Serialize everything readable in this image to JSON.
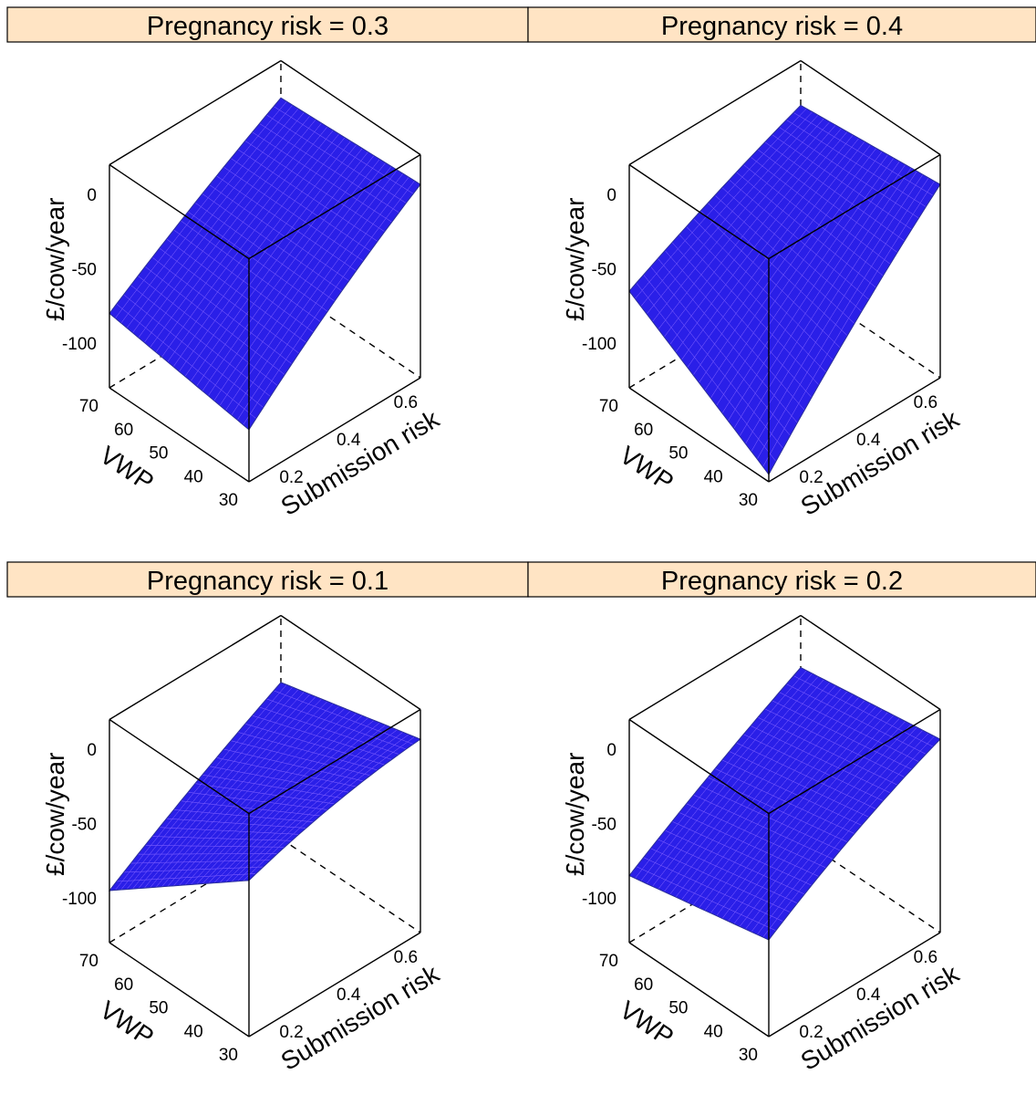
{
  "figure": {
    "strip_fill": "#ffe4c4",
    "surface_fill": "#2a1fe8",
    "surface_mesh": "#7b5cff",
    "surface_edge": "#2a2e9a"
  },
  "chart_data": [
    {
      "type": "surface3d",
      "panel": "Pregnancy risk = 0.3",
      "xlabel": "Submission risk",
      "ylabel": "VWP",
      "zlabel": "£/cow/year",
      "x_ticks": [
        "0.2",
        "0.4",
        "0.6"
      ],
      "y_ticks": [
        "30",
        "40",
        "50",
        "60",
        "70"
      ],
      "z_ticks": [
        "0",
        "-50",
        "-100"
      ],
      "xlim": [
        0.1,
        0.7
      ],
      "ylim": [
        30,
        70
      ],
      "zlim": [
        -130,
        20
      ],
      "corners": {
        "xmin_ymin": -95,
        "xmax_ymin": 0,
        "xmin_ymax": -80,
        "xmax_ymax": -5
      }
    },
    {
      "type": "surface3d",
      "panel": "Pregnancy risk = 0.4",
      "xlabel": "Submission risk",
      "ylabel": "VWP",
      "zlabel": "£/cow/year",
      "x_ticks": [
        "0.2",
        "0.4",
        "0.6"
      ],
      "y_ticks": [
        "30",
        "40",
        "50",
        "60",
        "70"
      ],
      "z_ticks": [
        "0",
        "-50",
        "-100"
      ],
      "xlim": [
        0.1,
        0.7
      ],
      "ylim": [
        30,
        70
      ],
      "zlim": [
        -130,
        20
      ],
      "corners": {
        "xmin_ymin": -125,
        "xmax_ymin": 0,
        "xmin_ymax": -65,
        "xmax_ymax": -10
      }
    },
    {
      "type": "surface3d",
      "panel": "Pregnancy risk = 0.1",
      "xlabel": "Submission risk",
      "ylabel": "VWP",
      "zlabel": "£/cow/year",
      "x_ticks": [
        "0.2",
        "0.4",
        "0.6"
      ],
      "y_ticks": [
        "30",
        "40",
        "50",
        "60",
        "70"
      ],
      "z_ticks": [
        "0",
        "-50",
        "-100"
      ],
      "xlim": [
        0.1,
        0.7
      ],
      "ylim": [
        30,
        70
      ],
      "zlim": [
        -130,
        20
      ],
      "corners": {
        "xmin_ymin": -25,
        "xmax_ymin": 0,
        "xmin_ymax": -95,
        "xmax_ymax": -25
      }
    },
    {
      "type": "surface3d",
      "panel": "Pregnancy risk = 0.2",
      "xlabel": "Submission risk",
      "ylabel": "VWP",
      "zlabel": "£/cow/year",
      "x_ticks": [
        "0.2",
        "0.4",
        "0.6"
      ],
      "y_ticks": [
        "30",
        "40",
        "50",
        "60",
        "70"
      ],
      "z_ticks": [
        "0",
        "-50",
        "-100"
      ],
      "xlim": [
        0.1,
        0.7
      ],
      "ylim": [
        30,
        70
      ],
      "zlim": [
        -130,
        20
      ],
      "corners": {
        "xmin_ymin": -65,
        "xmax_ymin": 0,
        "xmin_ymax": -85,
        "xmax_ymax": -15
      }
    }
  ]
}
